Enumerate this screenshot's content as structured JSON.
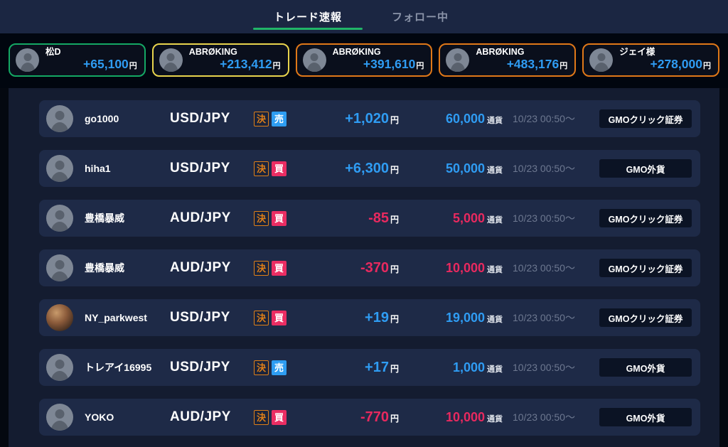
{
  "tabs": [
    {
      "label": "トレード速報",
      "active": true
    },
    {
      "label": "フォロー中",
      "active": false
    }
  ],
  "colors": {
    "accent_green": "#21b568",
    "profit_blue": "#2f9cf3",
    "loss_pink": "#e8295f",
    "close_badge_orange": "#e08018",
    "sell_badge_blue": "#2e9df2",
    "buy_badge_pink": "#ea2d63",
    "card_border_green": "#14a864",
    "card_border_yellow": "#e8d44d",
    "card_border_orange": "#e07818"
  },
  "top_traders": [
    {
      "name": "松D",
      "amount": "+65,100",
      "currency_suffix": "円",
      "border": "green",
      "avatar": "default"
    },
    {
      "name": "ABRØKING",
      "amount": "+213,412",
      "currency_suffix": "円",
      "border": "yellow",
      "avatar": "default"
    },
    {
      "name": "ABRØKING",
      "amount": "+391,610",
      "currency_suffix": "円",
      "border": "orange",
      "avatar": "default"
    },
    {
      "name": "ABRØKING",
      "amount": "+483,176",
      "currency_suffix": "円",
      "border": "orange",
      "avatar": "default"
    },
    {
      "name": "ジェイ様",
      "amount": "+278,000",
      "currency_suffix": "円",
      "border": "orange",
      "avatar": "default"
    }
  ],
  "trades": [
    {
      "user": "go1000",
      "pair": "USD/JPY",
      "close_badge": "決",
      "side_badge": "売",
      "side": "sell",
      "pnl": "profit",
      "amount": "+1,020",
      "currency_suffix": "円",
      "quantity": "60,000",
      "quantity_unit": "通貨",
      "time": "10/23 00:50～",
      "broker": "GMOクリック証券",
      "avatar": "default"
    },
    {
      "user": "hiha1",
      "pair": "USD/JPY",
      "close_badge": "決",
      "side_badge": "買",
      "side": "buy",
      "pnl": "profit",
      "amount": "+6,300",
      "currency_suffix": "円",
      "quantity": "50,000",
      "quantity_unit": "通貨",
      "time": "10/23 00:50～",
      "broker": "GMO外貨",
      "avatar": "default"
    },
    {
      "user": "豊橋暴威",
      "pair": "AUD/JPY",
      "close_badge": "決",
      "side_badge": "買",
      "side": "buy",
      "pnl": "loss",
      "amount": "-85",
      "currency_suffix": "円",
      "quantity": "5,000",
      "quantity_unit": "通貨",
      "time": "10/23 00:50～",
      "broker": "GMOクリック証券",
      "avatar": "default"
    },
    {
      "user": "豊橋暴威",
      "pair": "AUD/JPY",
      "close_badge": "決",
      "side_badge": "買",
      "side": "buy",
      "pnl": "loss",
      "amount": "-370",
      "currency_suffix": "円",
      "quantity": "10,000",
      "quantity_unit": "通貨",
      "time": "10/23 00:50～",
      "broker": "GMOクリック証券",
      "avatar": "default"
    },
    {
      "user": "NY_parkwest",
      "pair": "USD/JPY",
      "close_badge": "決",
      "side_badge": "買",
      "side": "buy",
      "pnl": "profit",
      "amount": "+19",
      "currency_suffix": "円",
      "quantity": "19,000",
      "quantity_unit": "通貨",
      "time": "10/23 00:50～",
      "broker": "GMOクリック証券",
      "avatar": "photo"
    },
    {
      "user": "トレアイ16995",
      "pair": "USD/JPY",
      "close_badge": "決",
      "side_badge": "売",
      "side": "sell",
      "pnl": "profit",
      "amount": "+17",
      "currency_suffix": "円",
      "quantity": "1,000",
      "quantity_unit": "通貨",
      "time": "10/23 00:50～",
      "broker": "GMO外貨",
      "avatar": "default"
    },
    {
      "user": "YOKO",
      "pair": "AUD/JPY",
      "close_badge": "決",
      "side_badge": "買",
      "side": "buy",
      "pnl": "loss",
      "amount": "-770",
      "currency_suffix": "円",
      "quantity": "10,000",
      "quantity_unit": "通貨",
      "time": "10/23 00:50～",
      "broker": "GMO外貨",
      "avatar": "default"
    }
  ]
}
